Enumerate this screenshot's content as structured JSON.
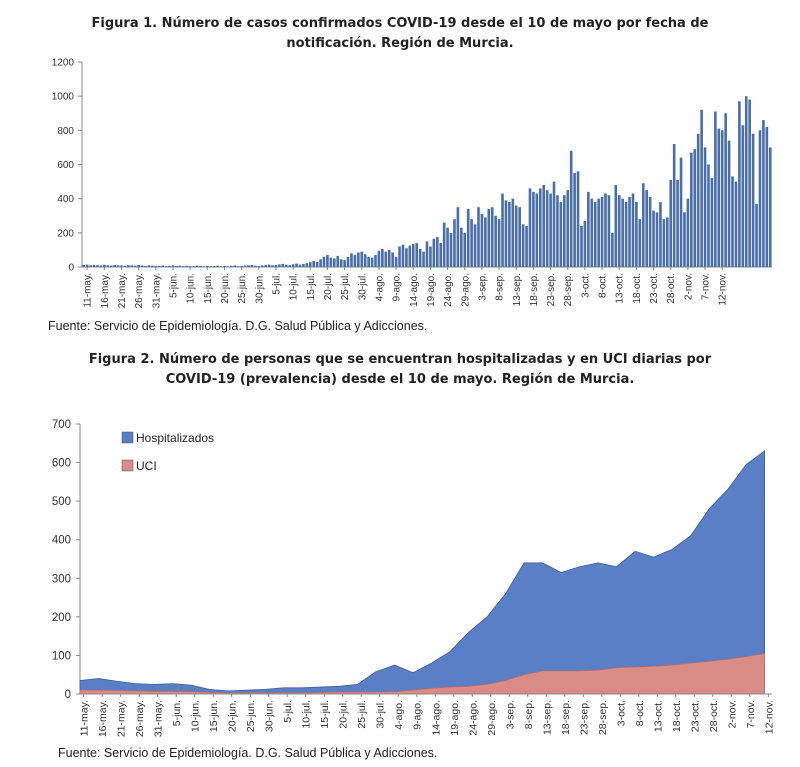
{
  "figure1": {
    "title_line1": "Figura 1. Número de casos confirmados COVID-19 desde el 10 de mayo por fecha de",
    "title_line2": "notificación. Región de Murcia.",
    "source": "Fuente: Servicio de Epidemiología. D.G. Salud Pública y Adicciones."
  },
  "figure2": {
    "title_line1": "Figura 2. Número de personas que se encuentran hospitalizadas y en UCI diarias por",
    "title_line2": "COVID-19 (prevalencia) desde el 10 de mayo. Región de Murcia.",
    "source": "Fuente: Servicio de Epidemiología. D.G. Salud Pública y Adicciones."
  },
  "colors": {
    "bars": "#4a6ea8",
    "hospitalizados": "#5b7fc6",
    "uci": "#d98c86",
    "axis": "#888888"
  },
  "chart_data": [
    {
      "type": "bar",
      "title": "Figura 1. Número de casos confirmados COVID-19 desde el 10 de mayo por fecha de notificación. Región de Murcia.",
      "xlabel": "",
      "ylabel": "",
      "ylim": [
        0,
        1200
      ],
      "yticks": [
        0,
        200,
        400,
        600,
        800,
        1000,
        1200
      ],
      "x_start": "10-may.",
      "x_tick_labels": [
        "11-may.",
        "16-may.",
        "21-may.",
        "26-may.",
        "31-may.",
        "5-jun.",
        "10-jun.",
        "15-jun.",
        "20-jun.",
        "25-jun.",
        "30-jun.",
        "5-jul.",
        "10-jul.",
        "15-jul.",
        "20-jul.",
        "25-jul.",
        "30-jul.",
        "4-ago.",
        "9-ago.",
        "14-ago.",
        "19-ago.",
        "24-ago.",
        "29-ago.",
        "3-sep.",
        "8-sep.",
        "13-sep.",
        "18-sep.",
        "23-sep.",
        "28-sep.",
        "3-oct.",
        "8-oct.",
        "13-oct.",
        "18-oct.",
        "23-oct.",
        "28-oct.",
        "2-nov.",
        "7-nov.",
        "12-nov."
      ],
      "grid": false,
      "values": [
        12,
        14,
        10,
        12,
        11,
        9,
        13,
        10,
        8,
        12,
        10,
        9,
        7,
        11,
        10,
        8,
        12,
        9,
        6,
        10,
        8,
        7,
        6,
        8,
        5,
        7,
        9,
        6,
        8,
        5,
        7,
        6,
        5,
        8,
        6,
        4,
        7,
        5,
        6,
        8,
        5,
        6,
        4,
        7,
        9,
        5,
        6,
        8,
        10,
        12,
        8,
        6,
        9,
        11,
        14,
        10,
        12,
        15,
        18,
        13,
        11,
        16,
        20,
        14,
        18,
        22,
        28,
        35,
        30,
        45,
        60,
        70,
        55,
        50,
        65,
        45,
        40,
        60,
        80,
        70,
        85,
        90,
        75,
        60,
        55,
        70,
        95,
        105,
        90,
        100,
        85,
        60,
        120,
        130,
        110,
        125,
        135,
        140,
        105,
        90,
        150,
        120,
        165,
        175,
        140,
        260,
        230,
        200,
        280,
        350,
        230,
        200,
        340,
        280,
        250,
        350,
        310,
        290,
        340,
        350,
        300,
        280,
        430,
        390,
        380,
        400,
        360,
        350,
        250,
        240,
        460,
        440,
        430,
        460,
        480,
        450,
        430,
        500,
        420,
        380,
        420,
        450,
        680,
        550,
        560,
        240,
        270,
        440,
        400,
        380,
        400,
        410,
        430,
        420,
        200,
        480,
        420,
        400,
        380,
        410,
        430,
        380,
        280,
        490,
        450,
        410,
        330,
        320,
        380,
        280,
        290,
        510,
        720,
        510,
        640,
        320,
        400,
        670,
        690,
        780,
        920,
        700,
        600,
        520,
        910,
        810,
        800,
        900,
        740,
        530,
        500,
        970,
        830,
        1000,
        980,
        780,
        370,
        800,
        860,
        820,
        700
      ]
    },
    {
      "type": "area",
      "title": "Figura 2. Número de personas que se encuentran hospitalizadas y en UCI diarias por COVID-19 (prevalencia) desde el 10 de mayo. Región de Murcia.",
      "xlabel": "",
      "ylabel": "",
      "ylim": [
        0,
        700
      ],
      "yticks": [
        0,
        100,
        200,
        300,
        400,
        500,
        600,
        700
      ],
      "x_start": "10-may.",
      "x_tick_labels": [
        "11-may.",
        "16-may.",
        "21-may.",
        "26-may.",
        "31-may.",
        "5-jun.",
        "10-jun.",
        "15-jun.",
        "20-jun.",
        "25-jun.",
        "30-jun.",
        "5-jul.",
        "10-jul.",
        "15-jul.",
        "20-jul.",
        "25-jul.",
        "30-jul.",
        "4-ago.",
        "9-ago.",
        "14-ago.",
        "19-ago.",
        "24-ago.",
        "29-ago.",
        "3-sep.",
        "8-sep.",
        "13-sep.",
        "18-sep.",
        "23-sep.",
        "28-sep.",
        "3-oct.",
        "8-oct.",
        "13-oct.",
        "18-oct.",
        "23-oct.",
        "28-oct.",
        "2-nov.",
        "7-nov.",
        "12-nov."
      ],
      "legend_position": "top-left",
      "grid": false,
      "stacked": true,
      "series": [
        {
          "name": "UCI",
          "color": "#d98c86",
          "x_days": [
            0,
            5,
            10,
            15,
            20,
            25,
            30,
            35,
            40,
            45,
            50,
            55,
            60,
            65,
            70,
            75,
            80,
            85,
            90,
            95,
            100,
            105,
            110,
            115,
            120,
            125,
            130,
            135,
            140,
            145,
            150,
            155,
            160,
            165,
            170,
            175,
            180,
            185
          ],
          "values": [
            10,
            10,
            9,
            8,
            7,
            7,
            6,
            4,
            3,
            3,
            3,
            3,
            3,
            4,
            5,
            5,
            5,
            6,
            10,
            15,
            18,
            20,
            25,
            35,
            50,
            60,
            60,
            60,
            62,
            68,
            70,
            72,
            75,
            80,
            85,
            90,
            97,
            105
          ]
        },
        {
          "name": "Hospitalizados",
          "color": "#5b7fc6",
          "x_days": [
            0,
            5,
            10,
            15,
            20,
            25,
            30,
            35,
            40,
            45,
            50,
            55,
            60,
            65,
            70,
            75,
            80,
            85,
            90,
            95,
            100,
            105,
            110,
            115,
            120,
            125,
            130,
            135,
            140,
            145,
            150,
            155,
            160,
            165,
            170,
            175,
            180,
            185
          ],
          "values": [
            35,
            40,
            33,
            27,
            25,
            27,
            23,
            12,
            8,
            10,
            12,
            16,
            16,
            18,
            20,
            25,
            58,
            75,
            55,
            80,
            110,
            160,
            200,
            260,
            340,
            340,
            315,
            330,
            340,
            330,
            370,
            355,
            375,
            410,
            480,
            530,
            595,
            630
          ]
        }
      ]
    }
  ]
}
